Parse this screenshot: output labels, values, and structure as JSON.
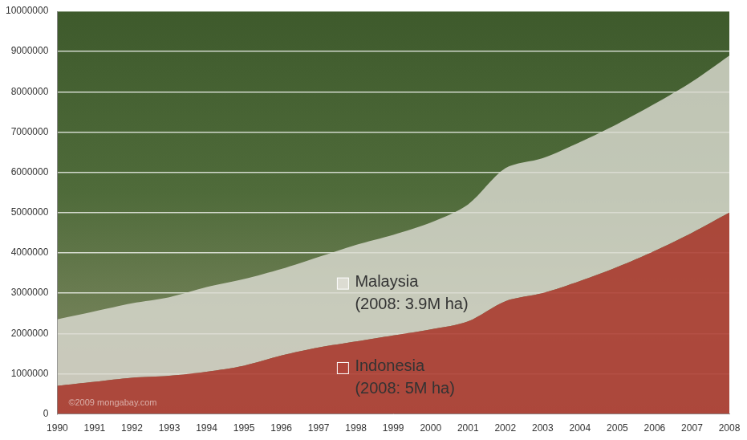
{
  "chart_data": {
    "type": "area",
    "stacked": true,
    "grid": true,
    "categories": [
      "1990",
      "1991",
      "1992",
      "1993",
      "1994",
      "1995",
      "1996",
      "1997",
      "1998",
      "1999",
      "2000",
      "2001",
      "2002",
      "2003",
      "2004",
      "2005",
      "2006",
      "2007",
      "2008"
    ],
    "series": [
      {
        "name": "Indonesia",
        "color": "#b0453a",
        "values": [
          700000,
          800000,
          900000,
          950000,
          1050000,
          1200000,
          1450000,
          1650000,
          1800000,
          1950000,
          2100000,
          2300000,
          2800000,
          3000000,
          3300000,
          3650000,
          4050000,
          4500000,
          5000000
        ]
      },
      {
        "name": "Malaysia",
        "color": "#dcdcd2",
        "values": [
          1650000,
          1750000,
          1850000,
          1950000,
          2100000,
          2150000,
          2150000,
          2250000,
          2400000,
          2500000,
          2650000,
          2900000,
          3300000,
          3350000,
          3450000,
          3550000,
          3650000,
          3750000,
          3900000
        ]
      }
    ],
    "ylim": [
      0,
      10000000
    ],
    "yticks": [
      0,
      1000000,
      2000000,
      3000000,
      4000000,
      5000000,
      6000000,
      7000000,
      8000000,
      9000000,
      10000000
    ],
    "annotations": [
      {
        "series": "Malaysia",
        "text": "(2008: 3.9M ha)"
      },
      {
        "series": "Indonesia",
        "text": "(2008: 5M ha)"
      },
      {
        "text": "©2009 mongabay.com"
      }
    ]
  }
}
